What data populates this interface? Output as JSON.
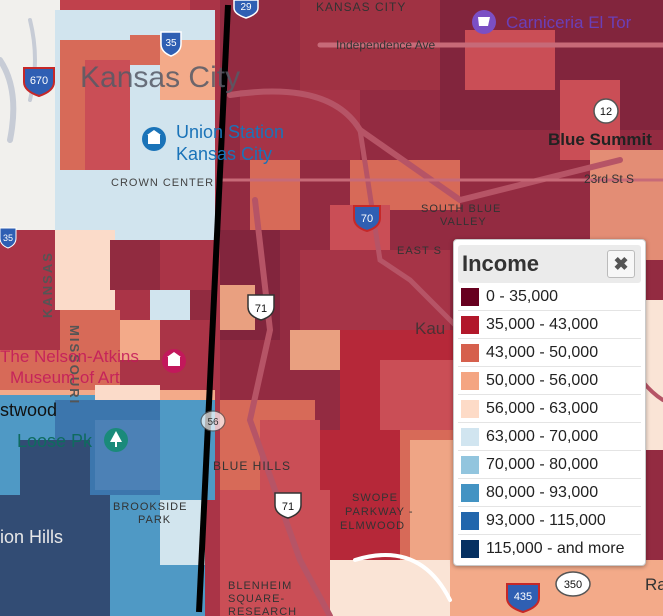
{
  "map": {
    "place_labels": {
      "city": "Kansas City",
      "union_station": [
        "Union Station",
        "Kansas City"
      ],
      "crown_center": "CROWN CENTER",
      "kansas": "KANSAS",
      "missouri": "MISSOURI",
      "nelson_atkins": [
        "The Nelson-Atkins",
        "Museum of Art"
      ],
      "westwood": "stwood",
      "loose_park": "Loose Pk",
      "mission_hills": "ion Hills",
      "brookside": [
        "BROOKSIDE",
        "PARK"
      ],
      "blue_hills": "BLUE HILLS",
      "swope": [
        "SWOPE",
        "PARKWAY -",
        "ELMWOOD"
      ],
      "blenheim": [
        "BLENHEIM",
        "SQUARE-",
        "RESEARCH"
      ],
      "south_blue_valley": [
        "SOUTH BLUE",
        "VALLEY"
      ],
      "east_s": "EAST S",
      "kansas_city_top": "KANSAS CITY",
      "independence_ave": "Independence Ave",
      "carniceria": "Carniceria El Tor",
      "blue_summit": "Blue Summit",
      "st23": "23rd St S",
      "kau": "Kau",
      "ra": "Ra"
    },
    "route_shields": {
      "i35": "35",
      "i670": "670",
      "i70": "70",
      "us71_a": "71",
      "us71_b": "71",
      "mo12": "12",
      "mo350": "350",
      "i435": "435",
      "i29": "29",
      "k35": "35",
      "r56": "56"
    }
  },
  "legend": {
    "title": "Income",
    "close_glyph": "✖",
    "items": [
      {
        "label": "0 - 35,000",
        "color": "#67001f"
      },
      {
        "label": "35,000 - 43,000",
        "color": "#b2182b"
      },
      {
        "label": "43,000 - 50,000",
        "color": "#d6604d"
      },
      {
        "label": "50,000 - 56,000",
        "color": "#f4a582"
      },
      {
        "label": "56,000 - 63,000",
        "color": "#fddbc7"
      },
      {
        "label": "63,000 - 70,000",
        "color": "#d1e5f0"
      },
      {
        "label": "70,000 - 80,000",
        "color": "#92c5de"
      },
      {
        "label": "80,000 - 93,000",
        "color": "#4393c3"
      },
      {
        "label": "93,000 - 115,000",
        "color": "#2166ac"
      },
      {
        "label": "115,000 - and more",
        "color": "#053061"
      }
    ]
  }
}
